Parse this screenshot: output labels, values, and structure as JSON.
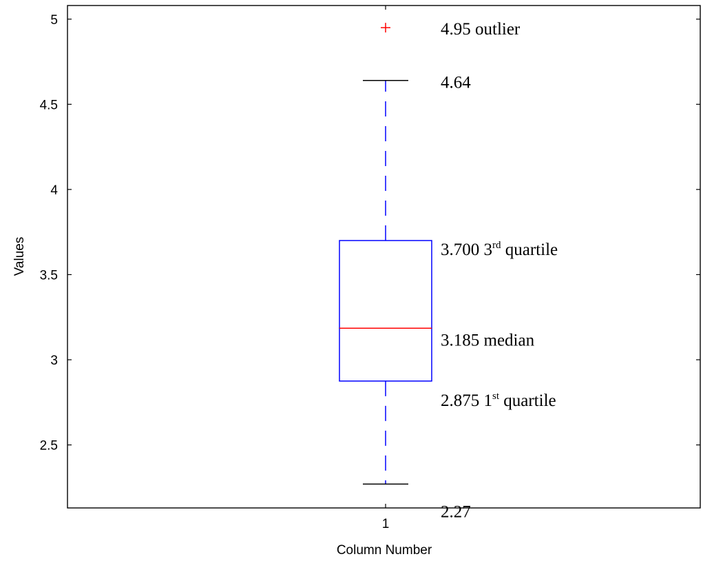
{
  "chart_data": {
    "type": "boxplot",
    "xlabel": "Column Number",
    "ylabel": "Values",
    "categories": [
      "1"
    ],
    "ylim": [
      2.13,
      5.08
    ],
    "yticks": [
      2.5,
      3,
      3.5,
      4,
      4.5,
      5
    ],
    "ytick_labels": [
      "2.5",
      "3",
      "3.5",
      "4",
      "4.5",
      "5"
    ],
    "grid": false,
    "boxes": [
      {
        "category": "1",
        "whisker_low": 2.27,
        "q1": 2.875,
        "median": 3.185,
        "q3": 3.7,
        "whisker_high": 4.64,
        "outliers": [
          4.95
        ]
      }
    ],
    "annotations": [
      {
        "id": "outlier",
        "value": 4.95,
        "number": "4.95",
        "text": " outlier"
      },
      {
        "id": "whisker-high",
        "value": 4.64,
        "number": "4.64",
        "text": ""
      },
      {
        "id": "q3",
        "value": 3.7,
        "number": "3.700",
        "ordinal": "3",
        "suffix": "rd",
        "text": " quartile"
      },
      {
        "id": "median",
        "value": 3.185,
        "number": "3.185",
        "text": "  median"
      },
      {
        "id": "q1",
        "value": 2.875,
        "number": "2.875",
        "ordinal": "1",
        "suffix": "st",
        "text": " quartile"
      },
      {
        "id": "whisker-low",
        "value": 2.27,
        "number": "2.27",
        "text": ""
      }
    ],
    "colors": {
      "box": "#0000ff",
      "whisker": "#0000ff",
      "cap": "#000000",
      "median": "#ff0000",
      "outlier": "#ff0000",
      "axes": "#000000"
    }
  }
}
